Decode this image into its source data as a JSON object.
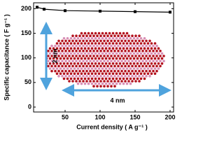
{
  "chart_data": {
    "type": "line",
    "xlabel": "Current density ( A g⁻¹ )",
    "ylabel": "Specific capacitance ( F g⁻¹ )",
    "x": [
      10,
      20,
      50,
      100,
      150,
      200
    ],
    "series": [
      {
        "color": "#000000",
        "values": [
          203,
          199,
          196,
          195,
          194,
          193
        ]
      }
    ],
    "xlim": [
      5,
      205
    ],
    "xticks": [
      50,
      100,
      150,
      200
    ],
    "ylim": [
      -10,
      212
    ],
    "yticks": [
      0,
      50,
      100,
      150,
      200
    ],
    "annotations": [
      "2 nm",
      "4 nm"
    ]
  }
}
